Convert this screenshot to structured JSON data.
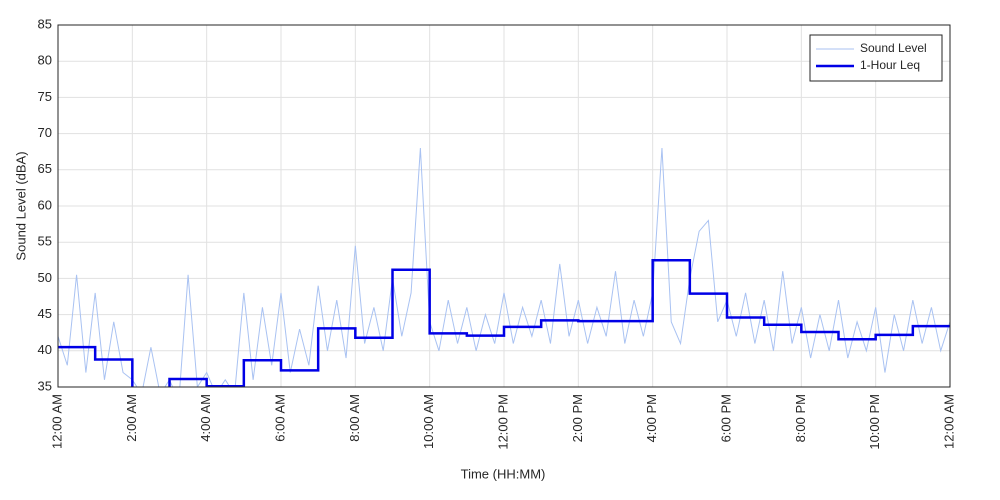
{
  "chart_data": {
    "type": "line",
    "xlabel": "Time (HH:MM)",
    "ylabel": "Sound Level (dBA)",
    "xlim": [
      0,
      24
    ],
    "ylim": [
      35,
      85
    ],
    "xticks": [
      {
        "value": 0,
        "label": "12:00 AM"
      },
      {
        "value": 2,
        "label": "2:00 AM"
      },
      {
        "value": 4,
        "label": "4:00 AM"
      },
      {
        "value": 6,
        "label": "6:00 AM"
      },
      {
        "value": 8,
        "label": "8:00 AM"
      },
      {
        "value": 10,
        "label": "10:00 AM"
      },
      {
        "value": 12,
        "label": "12:00 PM"
      },
      {
        "value": 14,
        "label": "2:00 PM"
      },
      {
        "value": 16,
        "label": "4:00 PM"
      },
      {
        "value": 18,
        "label": "6:00 PM"
      },
      {
        "value": 20,
        "label": "8:00 PM"
      },
      {
        "value": 22,
        "label": "10:00 PM"
      },
      {
        "value": 24,
        "label": "12:00 AM"
      }
    ],
    "yticks": [
      35,
      40,
      45,
      50,
      55,
      60,
      65,
      70,
      75,
      80,
      85
    ],
    "grid": true,
    "legend": "upper right",
    "series": [
      {
        "name": "Sound Level",
        "color": "#a9c2f2",
        "width": 1,
        "step": false,
        "x": [
          0,
          0.25,
          0.5,
          0.75,
          1,
          1.25,
          1.5,
          1.75,
          2,
          2.25,
          2.5,
          2.75,
          3,
          3.25,
          3.5,
          3.75,
          4,
          4.25,
          4.5,
          4.75,
          5,
          5.25,
          5.5,
          5.75,
          6,
          6.25,
          6.5,
          6.75,
          7,
          7.25,
          7.5,
          7.75,
          8,
          8.25,
          8.5,
          8.75,
          9,
          9.25,
          9.5,
          9.75,
          10,
          10.25,
          10.5,
          10.75,
          11,
          11.25,
          11.5,
          11.75,
          12,
          12.25,
          12.5,
          12.75,
          13,
          13.25,
          13.5,
          13.75,
          14,
          14.25,
          14.5,
          14.75,
          15,
          15.25,
          15.5,
          15.75,
          16,
          16.25,
          16.5,
          16.75,
          17,
          17.25,
          17.5,
          17.75,
          18,
          18.25,
          18.5,
          18.75,
          19,
          19.25,
          19.5,
          19.75,
          20,
          20.25,
          20.5,
          20.75,
          21,
          21.25,
          21.5,
          21.75,
          22,
          22.25,
          22.5,
          22.75,
          23,
          23.25,
          23.5,
          23.75,
          24
        ],
        "values": [
          42,
          38,
          50.5,
          37,
          48,
          36,
          44,
          37,
          36,
          34,
          40.5,
          34,
          36,
          33,
          50.5,
          35,
          37,
          34,
          36,
          34,
          48,
          36,
          46,
          38,
          48,
          37,
          43,
          38,
          49,
          40,
          47,
          39,
          54.5,
          41,
          46,
          40,
          50,
          42,
          48,
          68,
          44,
          40,
          47,
          41,
          46,
          40,
          45,
          41,
          48,
          41,
          46,
          42,
          47,
          41,
          52,
          42,
          47,
          41,
          46,
          42,
          51,
          41,
          47,
          42,
          48,
          68,
          44,
          41,
          50,
          56.5,
          58,
          44,
          47,
          42,
          48,
          41,
          47,
          40,
          51,
          41,
          46,
          39,
          45,
          40,
          47,
          39,
          44,
          40,
          46,
          37,
          45,
          40,
          47,
          41,
          46,
          40,
          44
        ]
      },
      {
        "name": "1-Hour Leq",
        "color": "#0000e6",
        "width": 2.5,
        "step": true,
        "x": [
          0,
          1,
          2,
          3,
          4,
          5,
          6,
          7,
          8,
          9,
          10,
          11,
          12,
          13,
          14,
          15,
          16,
          17,
          18,
          19,
          20,
          21,
          22,
          23,
          24
        ],
        "values": [
          40.5,
          38.8,
          34,
          36.1,
          35.1,
          38.7,
          37.3,
          43.1,
          41.8,
          51.2,
          42.4,
          42.1,
          43.3,
          44.2,
          44.1,
          44.1,
          52.5,
          47.9,
          44.6,
          43.6,
          42.6,
          41.6,
          42.2,
          43.4,
          43.4
        ]
      }
    ]
  }
}
